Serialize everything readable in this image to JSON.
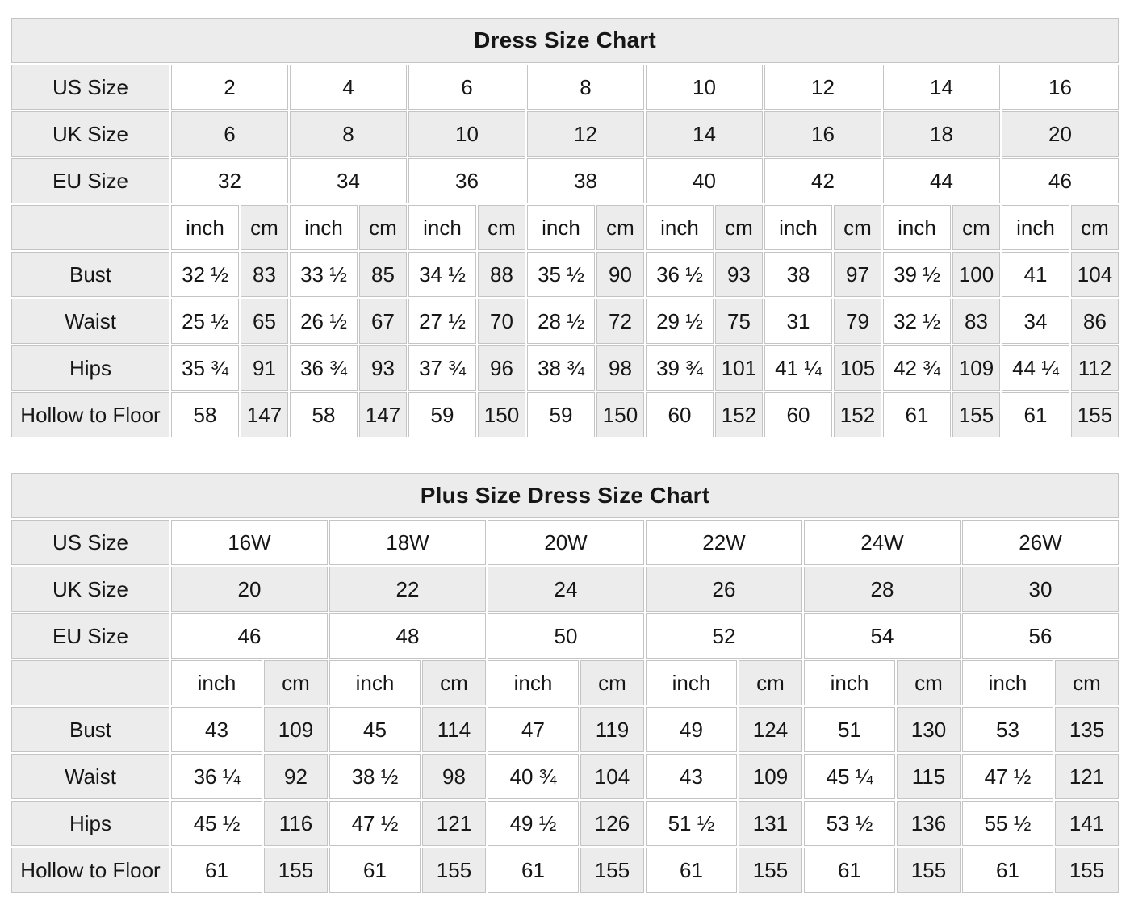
{
  "colors": {
    "cell_shaded": "#ececec",
    "cell_border": "#c4c4c4",
    "background": "#ffffff",
    "text": "#161616"
  },
  "units": {
    "inch": "inch",
    "cm": "cm"
  },
  "tables": [
    {
      "title": "Dress Size Chart",
      "size_rows": [
        {
          "label": "US Size",
          "shaded": false,
          "values": [
            "2",
            "4",
            "6",
            "8",
            "10",
            "12",
            "14",
            "16"
          ]
        },
        {
          "label": "UK Size",
          "shaded": true,
          "values": [
            "6",
            "8",
            "10",
            "12",
            "14",
            "16",
            "18",
            "20"
          ]
        },
        {
          "label": "EU Size",
          "shaded": false,
          "values": [
            "32",
            "34",
            "36",
            "38",
            "40",
            "42",
            "44",
            "46"
          ]
        }
      ],
      "measurement_rows": [
        {
          "label": "Bust",
          "pairs": [
            [
              "32 ½",
              "83"
            ],
            [
              "33 ½",
              "85"
            ],
            [
              "34 ½",
              "88"
            ],
            [
              "35 ½",
              "90"
            ],
            [
              "36 ½",
              "93"
            ],
            [
              "38",
              "97"
            ],
            [
              "39 ½",
              "100"
            ],
            [
              "41",
              "104"
            ]
          ]
        },
        {
          "label": "Waist",
          "pairs": [
            [
              "25 ½",
              "65"
            ],
            [
              "26 ½",
              "67"
            ],
            [
              "27 ½",
              "70"
            ],
            [
              "28 ½",
              "72"
            ],
            [
              "29 ½",
              "75"
            ],
            [
              "31",
              "79"
            ],
            [
              "32 ½",
              "83"
            ],
            [
              "34",
              "86"
            ]
          ]
        },
        {
          "label": "Hips",
          "pairs": [
            [
              "35 ¾",
              "91"
            ],
            [
              "36 ¾",
              "93"
            ],
            [
              "37 ¾",
              "96"
            ],
            [
              "38 ¾",
              "98"
            ],
            [
              "39 ¾",
              "101"
            ],
            [
              "41 ¼",
              "105"
            ],
            [
              "42 ¾",
              "109"
            ],
            [
              "44 ¼",
              "112"
            ]
          ]
        },
        {
          "label": "Hollow to Floor",
          "pairs": [
            [
              "58",
              "147"
            ],
            [
              "58",
              "147"
            ],
            [
              "59",
              "150"
            ],
            [
              "59",
              "150"
            ],
            [
              "60",
              "152"
            ],
            [
              "60",
              "152"
            ],
            [
              "61",
              "155"
            ],
            [
              "61",
              "155"
            ]
          ]
        }
      ]
    },
    {
      "title": "Plus Size Dress Size Chart",
      "size_rows": [
        {
          "label": "US Size",
          "shaded": false,
          "values": [
            "16W",
            "18W",
            "20W",
            "22W",
            "24W",
            "26W"
          ]
        },
        {
          "label": "UK Size",
          "shaded": true,
          "values": [
            "20",
            "22",
            "24",
            "26",
            "28",
            "30"
          ]
        },
        {
          "label": "EU Size",
          "shaded": false,
          "values": [
            "46",
            "48",
            "50",
            "52",
            "54",
            "56"
          ]
        }
      ],
      "measurement_rows": [
        {
          "label": "Bust",
          "pairs": [
            [
              "43",
              "109"
            ],
            [
              "45",
              "114"
            ],
            [
              "47",
              "119"
            ],
            [
              "49",
              "124"
            ],
            [
              "51",
              "130"
            ],
            [
              "53",
              "135"
            ]
          ]
        },
        {
          "label": "Waist",
          "pairs": [
            [
              "36 ¼",
              "92"
            ],
            [
              "38 ½",
              "98"
            ],
            [
              "40 ¾",
              "104"
            ],
            [
              "43",
              "109"
            ],
            [
              "45 ¼",
              "115"
            ],
            [
              "47 ½",
              "121"
            ]
          ]
        },
        {
          "label": "Hips",
          "pairs": [
            [
              "45 ½",
              "116"
            ],
            [
              "47 ½",
              "121"
            ],
            [
              "49 ½",
              "126"
            ],
            [
              "51 ½",
              "131"
            ],
            [
              "53 ½",
              "136"
            ],
            [
              "55 ½",
              "141"
            ]
          ]
        },
        {
          "label": "Hollow to Floor",
          "pairs": [
            [
              "61",
              "155"
            ],
            [
              "61",
              "155"
            ],
            [
              "61",
              "155"
            ],
            [
              "61",
              "155"
            ],
            [
              "61",
              "155"
            ],
            [
              "61",
              "155"
            ]
          ]
        }
      ]
    }
  ]
}
